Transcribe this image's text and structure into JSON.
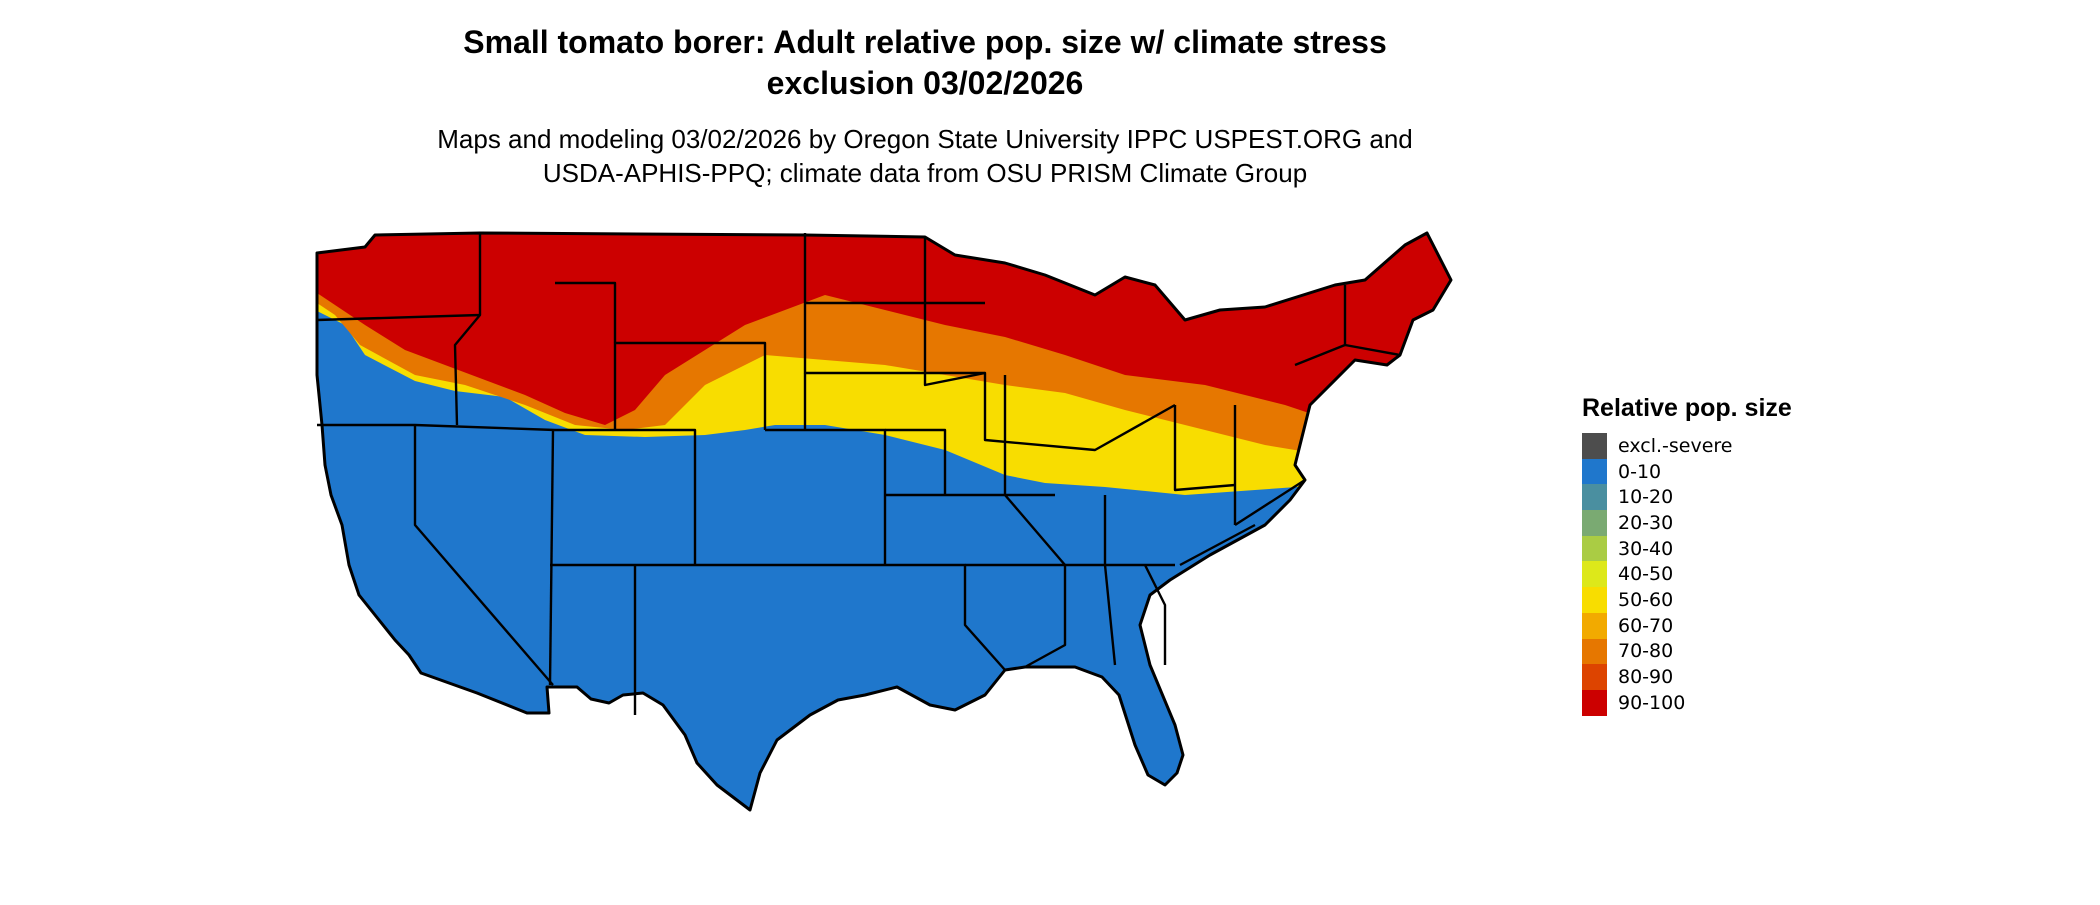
{
  "title_lines": [
    "Small tomato borer: Adult relative pop. size w/ climate stress",
    "exclusion 03/02/2026"
  ],
  "subtitle_lines": [
    "Maps and modeling 03/02/2026 by Oregon State University IPPC USPEST.ORG and",
    "USDA-APHIS-PPQ; climate data from OSU PRISM Climate Group"
  ],
  "legend": {
    "title": "Relative pop. size",
    "items": [
      {
        "label": "excl.-severe",
        "color": "#4d4d4d"
      },
      {
        "label": "0-10",
        "color": "#1f77cc"
      },
      {
        "label": "10-20",
        "color": "#4a8fa0"
      },
      {
        "label": "20-30",
        "color": "#7aaa72"
      },
      {
        "label": "30-40",
        "color": "#aacc44"
      },
      {
        "label": "40-50",
        "color": "#dde81a"
      },
      {
        "label": "50-60",
        "color": "#f8dd00"
      },
      {
        "label": "60-70",
        "color": "#f2aa00"
      },
      {
        "label": "70-80",
        "color": "#e67700"
      },
      {
        "label": "80-90",
        "color": "#dd4400"
      },
      {
        "label": "90-100",
        "color": "#cc0000"
      }
    ]
  },
  "map": {
    "region": "contiguous-united-states",
    "outline_color": "#000000",
    "zones": {
      "north": "#cc0000",
      "plains_transition": "#e67700",
      "central_band": "#f8dd00",
      "south": "#1f77cc"
    }
  }
}
